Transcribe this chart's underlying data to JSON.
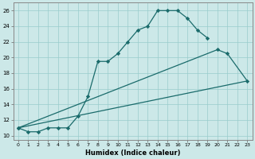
{
  "xlabel": "Humidex (Indice chaleur)",
  "background_color": "#cce8e8",
  "grid_color": "#99cccc",
  "line_color": "#1a6b6b",
  "xlim": [
    -0.5,
    23.5
  ],
  "ylim": [
    9.5,
    27
  ],
  "yticks": [
    10,
    12,
    14,
    16,
    18,
    20,
    22,
    24,
    26
  ],
  "xticks": [
    0,
    1,
    2,
    3,
    4,
    5,
    6,
    7,
    8,
    9,
    10,
    11,
    12,
    13,
    14,
    15,
    16,
    17,
    18,
    19,
    20,
    21,
    22,
    23
  ],
  "line1_x": [
    0,
    1,
    2,
    3,
    4,
    5,
    6,
    7,
    8,
    9,
    10,
    11,
    12,
    13,
    14,
    15,
    16,
    17,
    18,
    19
  ],
  "line1_y": [
    11,
    10.5,
    10.5,
    11,
    11,
    11,
    12.5,
    15,
    19.5,
    19.5,
    20.5,
    22,
    23.5,
    24,
    26,
    26,
    26,
    25,
    23.5,
    22.5
  ],
  "line2_x": [
    0,
    20,
    21,
    23
  ],
  "line2_y": [
    11,
    21,
    20.5,
    17
  ],
  "line3_x": [
    0,
    23
  ],
  "line3_y": [
    11,
    17
  ]
}
